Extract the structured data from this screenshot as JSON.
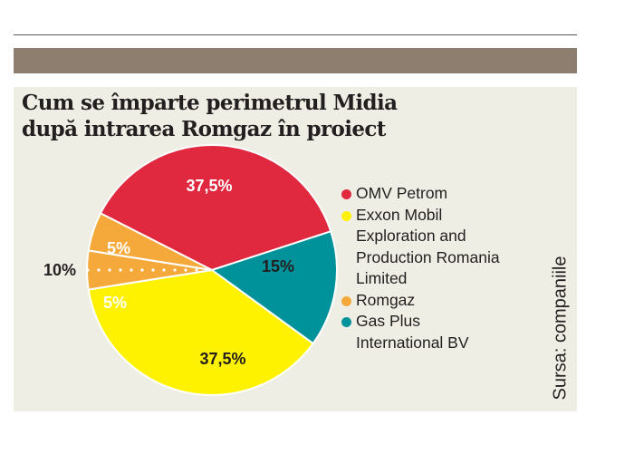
{
  "title_lines": [
    "Cum se împarte perimetrul Midia",
    "după intrarea Romgaz în proiect"
  ],
  "source": "Sursa: companiile",
  "colors": {
    "omv": "#e0283f",
    "exxon": "#fff200",
    "romgaz": "#f6a93b",
    "gasplus": "#00929a"
  },
  "chart_data": {
    "type": "pie",
    "title": "Cum se împarte perimetrul Midia după intrarea Romgaz în proiect",
    "slices": [
      {
        "name": "OMV Petrom",
        "value": 37.5,
        "label": "37,5%",
        "color": "#e0283f"
      },
      {
        "name": "Gas Plus International BV",
        "value": 15,
        "label": "15%",
        "color": "#00929a"
      },
      {
        "name": "Exxon Mobil Exploration and Production Romania Limited",
        "value": 37.5,
        "label": "37,5%",
        "color": "#fff200"
      },
      {
        "name": "Romgaz",
        "value": 5,
        "label": "5%",
        "color": "#f6a93b"
      },
      {
        "name": "Romgaz",
        "value": 5,
        "label": "5%",
        "color": "#f6a93b"
      }
    ],
    "combined_label": "10%",
    "legend": [
      {
        "name": "OMV Petrom",
        "lines": [
          "OMV Petrom"
        ],
        "color": "#e0283f"
      },
      {
        "name": "Exxon Mobil Exploration and Production Romania Limited",
        "lines": [
          "Exxon Mobil",
          "Exploration and",
          "Production Romania",
          "Limited"
        ],
        "color": "#fff200"
      },
      {
        "name": "Romgaz",
        "lines": [
          "Romgaz"
        ],
        "color": "#f6a93b"
      },
      {
        "name": "Gas Plus International BV",
        "lines": [
          "Gas Plus",
          "International BV"
        ],
        "color": "#00929a"
      }
    ]
  }
}
